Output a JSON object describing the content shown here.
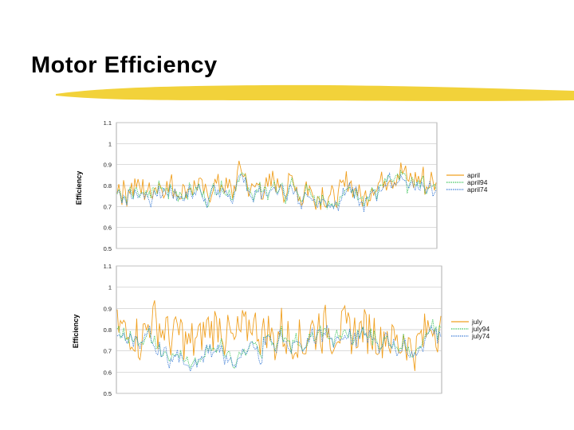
{
  "slide": {
    "title": "Motor Efficiency",
    "accent_color": "#f2d23a"
  },
  "chart_data": [
    {
      "type": "line",
      "ylabel": "Efficiency",
      "ylim": [
        0.5,
        1.1
      ],
      "yticks": [
        "1.1",
        "1",
        "0.9",
        "0.8",
        "0.7",
        "0.6",
        "0.5"
      ],
      "grid": true,
      "legend": "right",
      "series": [
        {
          "name": "april",
          "color": "#f0a020",
          "dash": "solid"
        },
        {
          "name": "april94",
          "color": "#3cc45a",
          "dash": "dotted"
        },
        {
          "name": "april74",
          "color": "#3a7bd5",
          "dash": "dotted"
        }
      ]
    },
    {
      "type": "line",
      "ylabel": "Efficiency",
      "ylim": [
        0.5,
        1.1
      ],
      "yticks": [
        "1.1",
        "1",
        "0.9",
        "0.8",
        "0.7",
        "0.6",
        "0.5"
      ],
      "grid": true,
      "legend": "right",
      "series": [
        {
          "name": "july",
          "color": "#f0a020",
          "dash": "solid"
        },
        {
          "name": "july94",
          "color": "#3cc45a",
          "dash": "dotted"
        },
        {
          "name": "july74",
          "color": "#3a7bd5",
          "dash": "dotted"
        }
      ]
    }
  ]
}
